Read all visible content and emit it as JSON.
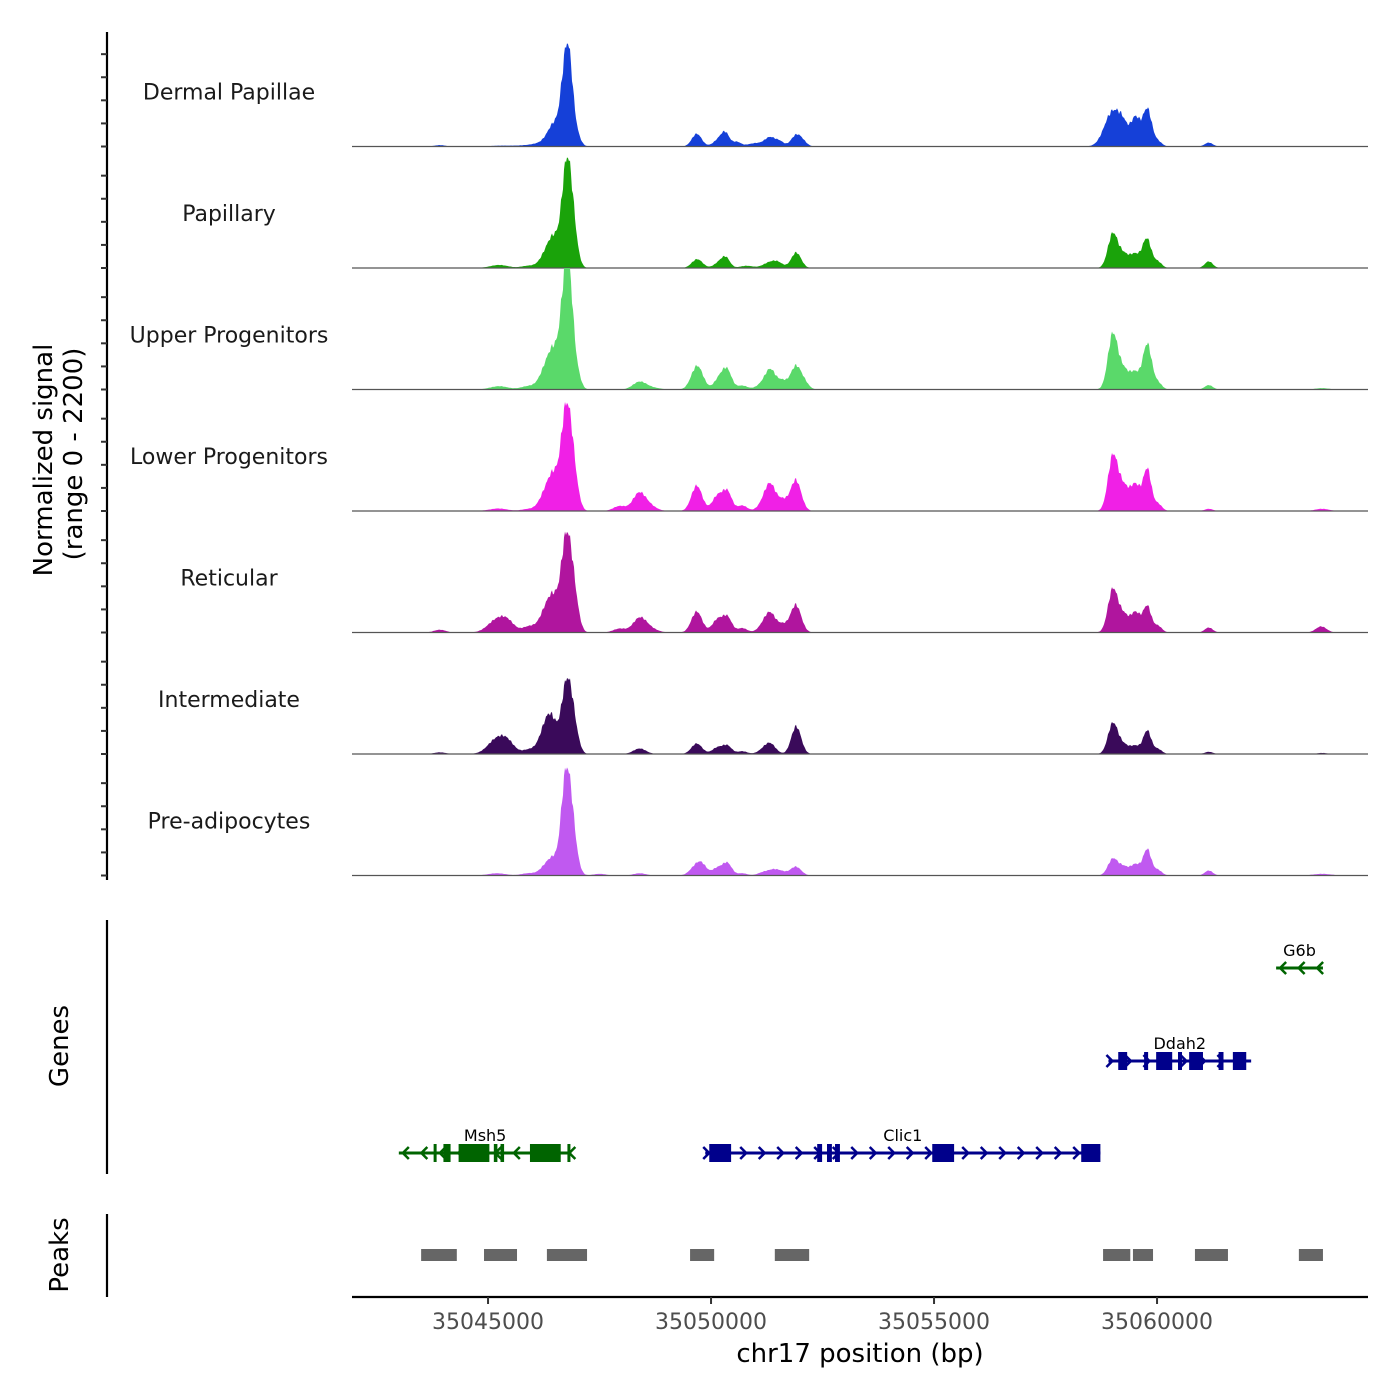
{
  "chart_data": {
    "type": "area",
    "title": "",
    "xlabel": "chr17 position (bp)",
    "ylabel": "Normalized signal\n(range 0 - 2200)",
    "ylabel_lines": [
      "Normalized signal",
      "(range 0 - 2200)"
    ],
    "ylim": [
      0,
      2200
    ],
    "xlim": [
      35041950,
      35064730
    ],
    "x_ticks": [
      35045000,
      35050000,
      35055000,
      35060000
    ],
    "x_tick_labels": [
      "35045000",
      "35050000",
      "35055000",
      "35060000"
    ],
    "grid": false,
    "legend": "none",
    "baseline_color": "#555555",
    "series": [
      {
        "name": "Dermal Papillae",
        "color": "#1540d8",
        "peaks": [
          [
            35043920,
            120,
            25
          ],
          [
            35045300,
            250,
            15
          ],
          [
            35045900,
            250,
            20
          ],
          [
            35046250,
            200,
            55
          ],
          [
            35046500,
            150,
            400
          ],
          [
            35046720,
            90,
            1150
          ],
          [
            35046830,
            80,
            1000
          ],
          [
            35046950,
            100,
            300
          ],
          [
            35049680,
            110,
            230
          ],
          [
            35050200,
            130,
            140
          ],
          [
            35050330,
            90,
            180
          ],
          [
            35050580,
            90,
            80
          ],
          [
            35051000,
            180,
            60
          ],
          [
            35051330,
            120,
            160
          ],
          [
            35051550,
            90,
            80
          ],
          [
            35051900,
            110,
            190
          ],
          [
            35052050,
            100,
            80
          ],
          [
            35059000,
            180,
            620
          ],
          [
            35059250,
            120,
            280
          ],
          [
            35059520,
            100,
            500
          ],
          [
            35059780,
            100,
            680
          ],
          [
            35060020,
            90,
            90
          ],
          [
            35061160,
            90,
            70
          ],
          [
            35063700,
            200,
            8
          ]
        ]
      },
      {
        "name": "Papillary",
        "color": "#1aa30a",
        "peaks": [
          [
            35045250,
            200,
            55
          ],
          [
            35045900,
            150,
            40
          ],
          [
            35046280,
            140,
            170
          ],
          [
            35046500,
            150,
            540
          ],
          [
            35046730,
            90,
            1250
          ],
          [
            35046850,
            90,
            1120
          ],
          [
            35046970,
            90,
            250
          ],
          [
            35049690,
            120,
            160
          ],
          [
            35050200,
            120,
            110
          ],
          [
            35050340,
            90,
            150
          ],
          [
            35050800,
            150,
            40
          ],
          [
            35051300,
            140,
            90
          ],
          [
            35051500,
            120,
            90
          ],
          [
            35051910,
            110,
            280
          ],
          [
            35059010,
            110,
            620
          ],
          [
            35059250,
            110,
            230
          ],
          [
            35059500,
            110,
            240
          ],
          [
            35059770,
            100,
            530
          ],
          [
            35060020,
            90,
            110
          ],
          [
            35061160,
            90,
            120
          ]
        ]
      },
      {
        "name": "Upper Progenitors",
        "color": "#5ad96a",
        "peaks": [
          [
            35045250,
            200,
            60
          ],
          [
            35045900,
            160,
            60
          ],
          [
            35046270,
            140,
            260
          ],
          [
            35046500,
            150,
            700
          ],
          [
            35046720,
            90,
            1550
          ],
          [
            35046840,
            80,
            1350
          ],
          [
            35046980,
            90,
            350
          ],
          [
            35048400,
            150,
            140
          ],
          [
            35048700,
            160,
            30
          ],
          [
            35049690,
            130,
            430
          ],
          [
            35050200,
            120,
            220
          ],
          [
            35050370,
            100,
            300
          ],
          [
            35050700,
            120,
            70
          ],
          [
            35051110,
            120,
            70
          ],
          [
            35051330,
            120,
            360
          ],
          [
            35051600,
            100,
            140
          ],
          [
            35051900,
            120,
            420
          ],
          [
            35052100,
            100,
            100
          ],
          [
            35059010,
            110,
            1000
          ],
          [
            35059250,
            110,
            330
          ],
          [
            35059500,
            110,
            300
          ],
          [
            35059780,
            100,
            820
          ],
          [
            35060020,
            90,
            120
          ],
          [
            35061160,
            90,
            80
          ],
          [
            35063700,
            150,
            25
          ]
        ]
      },
      {
        "name": "Lower Progenitors",
        "color": "#f020e6",
        "peaks": [
          [
            35045230,
            200,
            45
          ],
          [
            35045900,
            150,
            35
          ],
          [
            35046270,
            140,
            230
          ],
          [
            35046500,
            150,
            650
          ],
          [
            35046720,
            90,
            1250
          ],
          [
            35046850,
            90,
            1120
          ],
          [
            35046980,
            90,
            300
          ],
          [
            35047950,
            140,
            90
          ],
          [
            35048380,
            140,
            300
          ],
          [
            35048600,
            160,
            100
          ],
          [
            35049680,
            120,
            460
          ],
          [
            35050150,
            120,
            280
          ],
          [
            35050370,
            100,
            330
          ],
          [
            35050700,
            110,
            100
          ],
          [
            35051160,
            120,
            110
          ],
          [
            35051330,
            120,
            460
          ],
          [
            35051600,
            110,
            180
          ],
          [
            35051900,
            120,
            560
          ],
          [
            35059010,
            110,
            980
          ],
          [
            35059250,
            120,
            420
          ],
          [
            35059520,
            110,
            460
          ],
          [
            35059780,
            90,
            750
          ],
          [
            35060020,
            90,
            130
          ],
          [
            35061160,
            90,
            40
          ],
          [
            35063700,
            150,
            40
          ]
        ]
      },
      {
        "name": "Reticular",
        "color": "#b0159e",
        "peaks": [
          [
            35043920,
            130,
            50
          ],
          [
            35045200,
            200,
            230
          ],
          [
            35045450,
            150,
            150
          ],
          [
            35045920,
            150,
            110
          ],
          [
            35046280,
            140,
            300
          ],
          [
            35046500,
            150,
            600
          ],
          [
            35046720,
            90,
            1150
          ],
          [
            35046850,
            90,
            1050
          ],
          [
            35046980,
            90,
            350
          ],
          [
            35047950,
            140,
            70
          ],
          [
            35048400,
            150,
            260
          ],
          [
            35048650,
            160,
            60
          ],
          [
            35049680,
            120,
            380
          ],
          [
            35050150,
            120,
            240
          ],
          [
            35050370,
            100,
            260
          ],
          [
            35050700,
            110,
            80
          ],
          [
            35051160,
            120,
            100
          ],
          [
            35051330,
            120,
            330
          ],
          [
            35051600,
            110,
            130
          ],
          [
            35051900,
            120,
            500
          ],
          [
            35059010,
            110,
            780
          ],
          [
            35059250,
            110,
            300
          ],
          [
            35059520,
            110,
            360
          ],
          [
            35059780,
            90,
            470
          ],
          [
            35060020,
            90,
            120
          ],
          [
            35061160,
            90,
            90
          ],
          [
            35063680,
            120,
            110
          ]
        ]
      },
      {
        "name": "Intermediate",
        "color": "#3a0a5a",
        "peaks": [
          [
            35043920,
            130,
            30
          ],
          [
            35045200,
            200,
            270
          ],
          [
            35045450,
            150,
            160
          ],
          [
            35045920,
            150,
            80
          ],
          [
            35046280,
            140,
            380
          ],
          [
            35046450,
            140,
            500
          ],
          [
            35046720,
            90,
            880
          ],
          [
            35046850,
            90,
            850
          ],
          [
            35046980,
            90,
            250
          ],
          [
            35048400,
            140,
            100
          ],
          [
            35049680,
            120,
            190
          ],
          [
            35050150,
            120,
            120
          ],
          [
            35050370,
            100,
            140
          ],
          [
            35050700,
            110,
            50
          ],
          [
            35051160,
            120,
            60
          ],
          [
            35051330,
            120,
            180
          ],
          [
            35051910,
            110,
            500
          ],
          [
            35059010,
            110,
            550
          ],
          [
            35059250,
            120,
            160
          ],
          [
            35059520,
            110,
            140
          ],
          [
            35059780,
            90,
            420
          ],
          [
            35060020,
            90,
            90
          ],
          [
            35061160,
            90,
            40
          ],
          [
            35063700,
            100,
            20
          ]
        ]
      },
      {
        "name": "Pre-adipocytes",
        "color": "#c059f0",
        "peaks": [
          [
            35045200,
            200,
            40
          ],
          [
            35045900,
            150,
            40
          ],
          [
            35046280,
            140,
            120
          ],
          [
            35046500,
            150,
            300
          ],
          [
            35046720,
            90,
            1350
          ],
          [
            35046850,
            90,
            1100
          ],
          [
            35046980,
            90,
            220
          ],
          [
            35047500,
            140,
            30
          ],
          [
            35048400,
            140,
            40
          ],
          [
            35049650,
            130,
            150
          ],
          [
            35049800,
            110,
            160
          ],
          [
            35050150,
            120,
            140
          ],
          [
            35050370,
            100,
            210
          ],
          [
            35050700,
            110,
            40
          ],
          [
            35051160,
            120,
            50
          ],
          [
            35051400,
            130,
            100
          ],
          [
            35051600,
            110,
            50
          ],
          [
            35051900,
            120,
            160
          ],
          [
            35059010,
            110,
            300
          ],
          [
            35059250,
            110,
            150
          ],
          [
            35059520,
            110,
            200
          ],
          [
            35059780,
            90,
            470
          ],
          [
            35060020,
            90,
            100
          ],
          [
            35061160,
            90,
            90
          ],
          [
            35063700,
            200,
            30
          ]
        ]
      }
    ],
    "genes": {
      "panel_label": "Genes",
      "items": [
        {
          "name": "Msh5",
          "strand": "-",
          "color": "#006400",
          "row": 1,
          "start": 35043000,
          "end": 35046870,
          "exons": [
            [
              35043780,
              35043820
            ],
            [
              35044000,
              35044160
            ],
            [
              35044340,
              35045030
            ],
            [
              35045130,
              35045210
            ],
            [
              35045280,
              35045360
            ],
            [
              35045940,
              35046630
            ],
            [
              35046780,
              35046830
            ]
          ]
        },
        {
          "name": "Clic1",
          "strand": "+",
          "color": "#00008b",
          "row": 1,
          "start": 35049870,
          "end": 35058730,
          "exons": [
            [
              35049960,
              35050450
            ],
            [
              35052380,
              35052490
            ],
            [
              35052600,
              35052710
            ],
            [
              35052780,
              35052890
            ],
            [
              35054960,
              35055450
            ],
            [
              35058300,
              35058730
            ]
          ]
        },
        {
          "name": "Ddah2",
          "strand": "+",
          "color": "#00008b",
          "row": 2,
          "start": 35058910,
          "end": 35062110,
          "exons": [
            [
              35059130,
              35059330
            ],
            [
              35059710,
              35059800
            ],
            [
              35059980,
              35060340
            ],
            [
              35060470,
              35060560
            ],
            [
              35060720,
              35061030
            ],
            [
              35061380,
              35061490
            ],
            [
              35061700,
              35062000
            ]
          ]
        },
        {
          "name": "G6b",
          "strand": "-",
          "color": "#006400",
          "row": 3,
          "start": 35062670,
          "end": 35063720,
          "exons": []
        }
      ]
    },
    "peaks_track": {
      "panel_label": "Peaks",
      "color": "#666666",
      "regions": [
        [
          35043500,
          35044300
        ],
        [
          35044910,
          35045650
        ],
        [
          35046320,
          35047220
        ],
        [
          35049530,
          35050070
        ],
        [
          35051430,
          35052200
        ],
        [
          35058790,
          35059400
        ],
        [
          35059460,
          35059910
        ],
        [
          35060850,
          35061590
        ],
        [
          35063180,
          35063720
        ]
      ]
    }
  }
}
